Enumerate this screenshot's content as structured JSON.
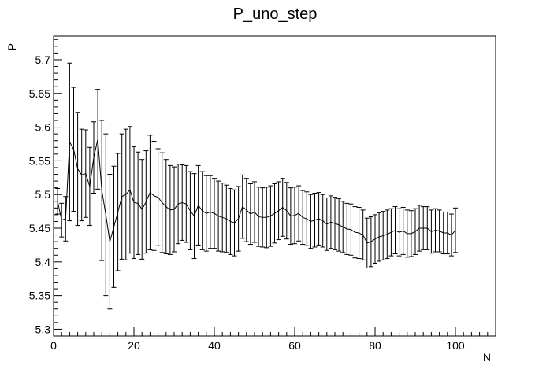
{
  "chart_data": {
    "type": "line",
    "title": "P_uno_step",
    "xlabel": "N",
    "ylabel": "P",
    "xlim": [
      0,
      110
    ],
    "ylim": [
      5.29,
      5.735
    ],
    "x_ticks": [
      0,
      20,
      40,
      60,
      80,
      100
    ],
    "x_tick_labels": [
      "0",
      "20",
      "40",
      "60",
      "80",
      "100"
    ],
    "y_ticks": [
      5.3,
      5.35,
      5.4,
      5.45,
      5.5,
      5.55,
      5.6,
      5.65,
      5.7
    ],
    "y_tick_labels": [
      "5.3",
      "5.35",
      "5.4",
      "5.45",
      "5.5",
      "5.55",
      "5.6",
      "5.65",
      "5.7"
    ],
    "grid": false,
    "series": [
      {
        "x": [
          1,
          2,
          3,
          4,
          5,
          6,
          7,
          8,
          9,
          10,
          11,
          12,
          13,
          14,
          15,
          16,
          17,
          18,
          19,
          20,
          21,
          22,
          23,
          24,
          25,
          26,
          27,
          28,
          29,
          30,
          31,
          32,
          33,
          34,
          35,
          36,
          37,
          38,
          39,
          40,
          41,
          42,
          43,
          44,
          45,
          46,
          47,
          48,
          49,
          50,
          51,
          52,
          53,
          54,
          55,
          56,
          57,
          58,
          59,
          60,
          61,
          62,
          63,
          64,
          65,
          66,
          67,
          68,
          69,
          70,
          71,
          72,
          73,
          74,
          75,
          76,
          77,
          78,
          79,
          80,
          81,
          82,
          83,
          84,
          85,
          86,
          87,
          88,
          89,
          90,
          91,
          92,
          93,
          94,
          95,
          96,
          97,
          98,
          99,
          100
        ],
        "y": [
          5.49,
          5.462,
          5.464,
          5.578,
          5.567,
          5.538,
          5.529,
          5.531,
          5.512,
          5.555,
          5.582,
          5.506,
          5.47,
          5.43,
          5.452,
          5.474,
          5.497,
          5.5,
          5.507,
          5.488,
          5.487,
          5.478,
          5.489,
          5.503,
          5.498,
          5.496,
          5.488,
          5.482,
          5.477,
          5.478,
          5.486,
          5.488,
          5.486,
          5.476,
          5.468,
          5.484,
          5.476,
          5.472,
          5.474,
          5.472,
          5.468,
          5.466,
          5.464,
          5.46,
          5.458,
          5.464,
          5.482,
          5.477,
          5.471,
          5.474,
          5.467,
          5.466,
          5.466,
          5.468,
          5.472,
          5.476,
          5.481,
          5.476,
          5.468,
          5.469,
          5.472,
          5.466,
          5.464,
          5.46,
          5.462,
          5.464,
          5.461,
          5.456,
          5.459,
          5.457,
          5.455,
          5.452,
          5.449,
          5.448,
          5.444,
          5.443,
          5.44,
          5.428,
          5.43,
          5.434,
          5.437,
          5.439,
          5.441,
          5.444,
          5.447,
          5.444,
          5.446,
          5.442,
          5.442,
          5.445,
          5.45,
          5.45,
          5.45,
          5.445,
          5.447,
          5.446,
          5.443,
          5.443,
          5.44,
          5.447
        ],
        "err": [
          0.019,
          0.025,
          0.033,
          0.117,
          0.092,
          0.084,
          0.068,
          0.065,
          0.058,
          0.053,
          0.074,
          0.104,
          0.12,
          0.1,
          0.09,
          0.087,
          0.093,
          0.097,
          0.094,
          0.083,
          0.076,
          0.074,
          0.076,
          0.085,
          0.081,
          0.072,
          0.074,
          0.07,
          0.066,
          0.063,
          0.059,
          0.056,
          0.057,
          0.058,
          0.063,
          0.059,
          0.058,
          0.056,
          0.054,
          0.052,
          0.052,
          0.051,
          0.05,
          0.049,
          0.049,
          0.048,
          0.047,
          0.047,
          0.045,
          0.045,
          0.044,
          0.044,
          0.045,
          0.045,
          0.044,
          0.043,
          0.043,
          0.042,
          0.042,
          0.042,
          0.041,
          0.04,
          0.04,
          0.04,
          0.04,
          0.039,
          0.039,
          0.039,
          0.039,
          0.039,
          0.039,
          0.038,
          0.038,
          0.038,
          0.038,
          0.038,
          0.037,
          0.037,
          0.037,
          0.036,
          0.036,
          0.036,
          0.036,
          0.035,
          0.035,
          0.035,
          0.035,
          0.035,
          0.034,
          0.034,
          0.034,
          0.032,
          0.032,
          0.032,
          0.032,
          0.031,
          0.031,
          0.031,
          0.031,
          0.033
        ]
      }
    ]
  }
}
